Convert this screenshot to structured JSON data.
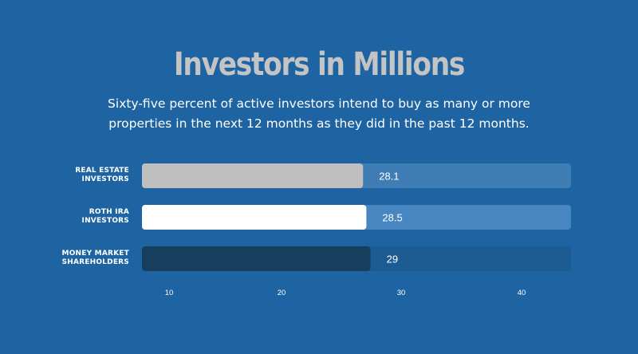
{
  "title": "Investors in Millions",
  "subtitle": "Sixty-five percent of active investors intend to buy as many or more properties in the next 12 months as they did in the past 12 months.",
  "colors": {
    "background": "#1e64a2",
    "title": "#c4c4c4",
    "track": "#3f7db5"
  },
  "chart_data": {
    "type": "bar",
    "orientation": "horizontal",
    "categories": [
      [
        "REAL ESTATE",
        "INVESTORS"
      ],
      [
        "ROTH IRA",
        "INVESTORS"
      ],
      [
        "MONEY MARKET",
        "SHAREHOLDERS"
      ]
    ],
    "values": [
      28.1,
      28.5,
      29
    ],
    "value_labels": [
      "28.1",
      "28.5",
      "29"
    ],
    "bar_colors": [
      "#bfbfbf",
      "#ffffff",
      "#173e5d"
    ],
    "track_colors": [
      "#3f7db5",
      "#4886c1",
      "#1d5b93"
    ],
    "x_ticks": [
      "10",
      "20",
      "30",
      "40"
    ],
    "grid": false,
    "legend": "none"
  }
}
